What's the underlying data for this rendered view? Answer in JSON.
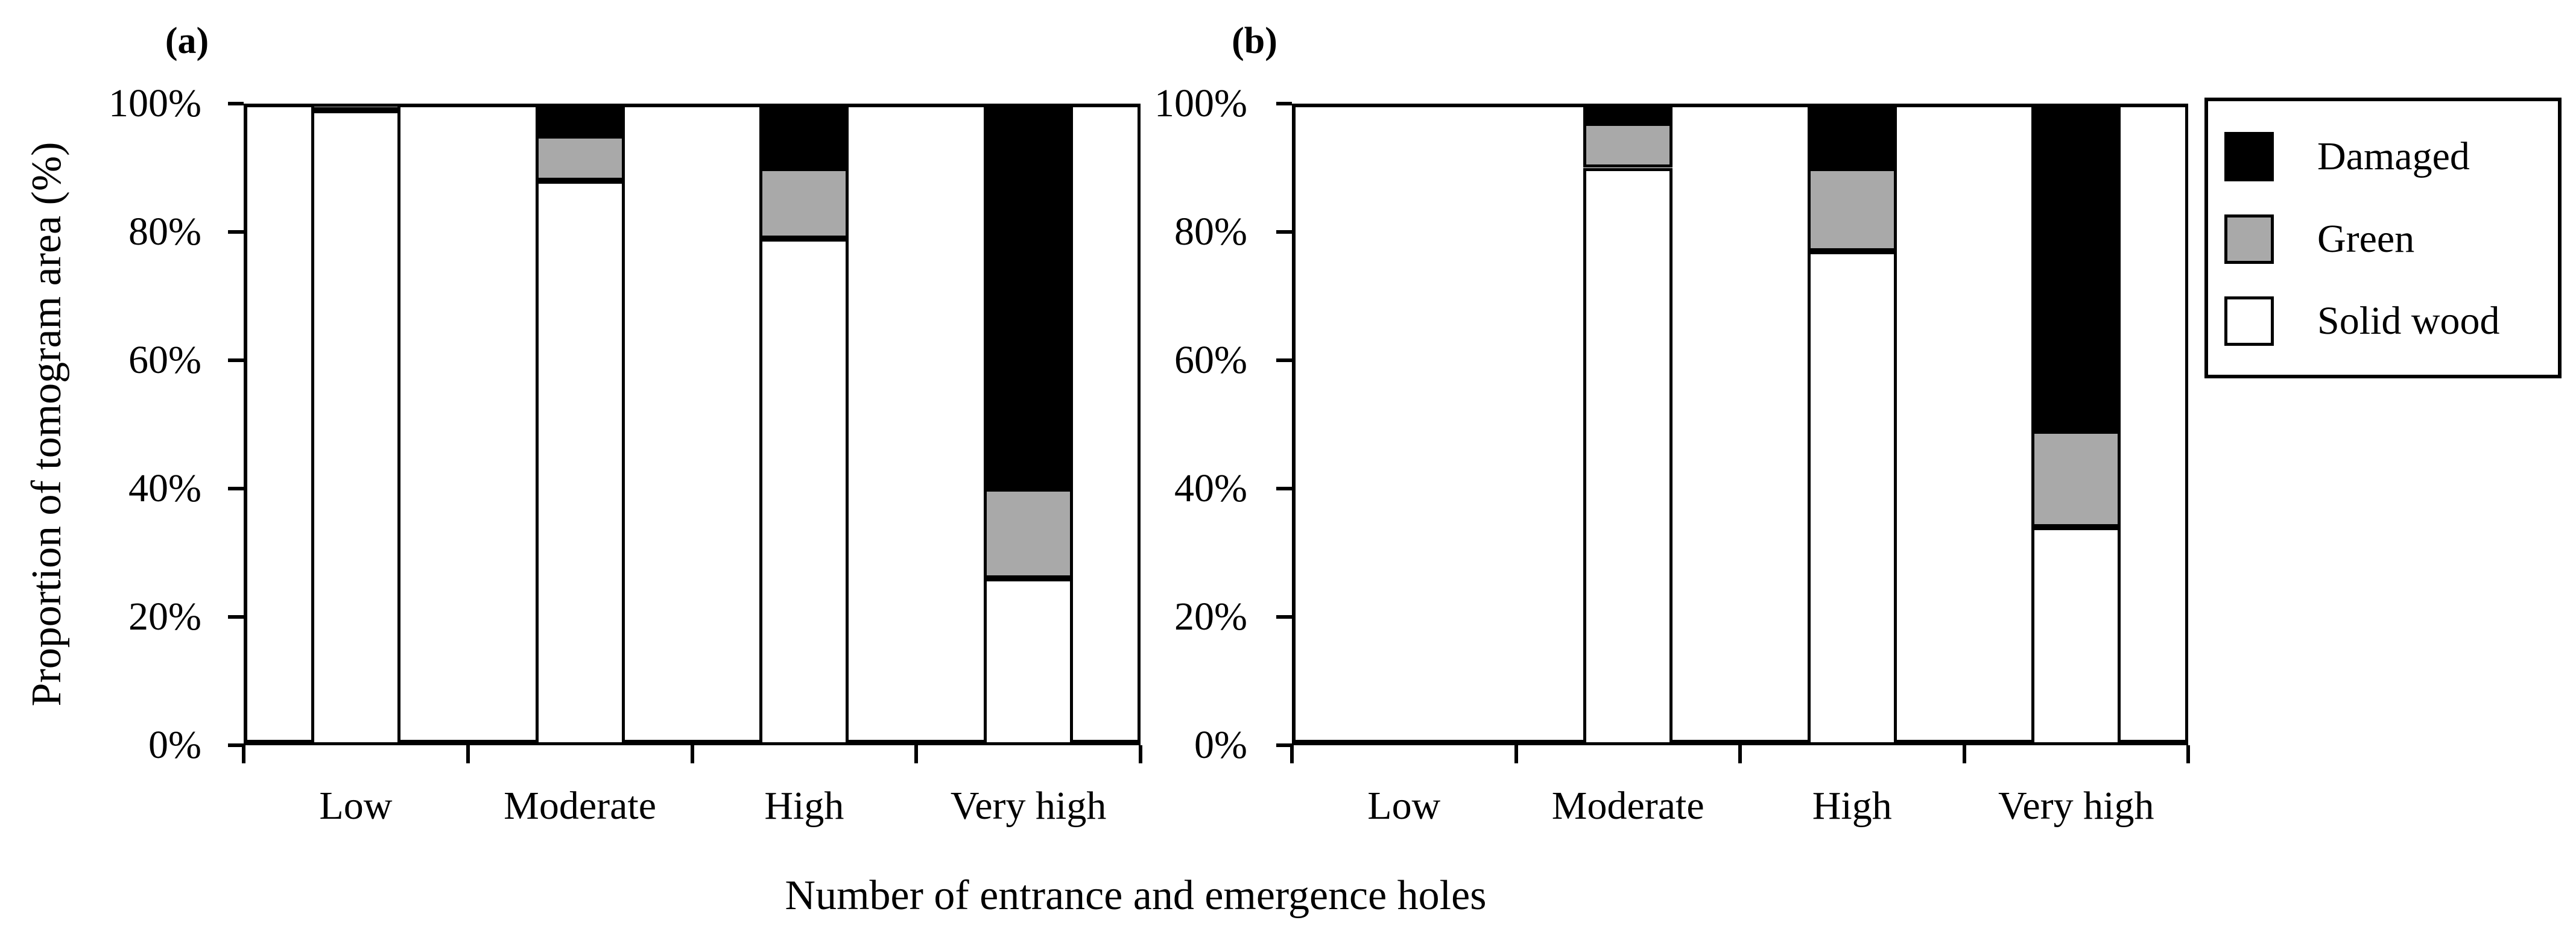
{
  "figure": {
    "y_axis_title": "Proportion of tomogram area (%)",
    "x_axis_title": "Number of entrance and emergence holes",
    "colors": {
      "damaged": "#000000",
      "green": "#a9a9a9",
      "solid_wood": "#ffffff",
      "line": "#000000",
      "background": "#ffffff"
    }
  },
  "legend": {
    "items": [
      {
        "label": "Damaged",
        "color_key": "damaged"
      },
      {
        "label": "Green",
        "color_key": "green"
      },
      {
        "label": "Solid wood",
        "color_key": "solid_wood"
      }
    ]
  },
  "chart_data": [
    {
      "type": "bar",
      "stacked": true,
      "panel_label": "(a)",
      "categories": [
        "Low",
        "Moderate",
        "High",
        "Very high"
      ],
      "series": [
        {
          "name": "Solid wood",
          "color_key": "solid_wood",
          "values": [
            99,
            88,
            79,
            26
          ]
        },
        {
          "name": "Green",
          "color_key": "green",
          "values": [
            1,
            7,
            11,
            14
          ]
        },
        {
          "name": "Damaged",
          "color_key": "damaged",
          "values": [
            0,
            5,
            10,
            60
          ]
        }
      ],
      "yticks": [
        "0%",
        "20%",
        "40%",
        "60%",
        "80%",
        "100%"
      ],
      "ylim": [
        0,
        100
      ],
      "ylabel": "Proportion of tomogram area (%)",
      "xlabel": "Number of entrance and emergence holes",
      "grid": false,
      "legend_position": "right-outside"
    },
    {
      "type": "bar",
      "stacked": true,
      "panel_label": "(b)",
      "categories": [
        "Low",
        "Moderate",
        "High",
        "Very high"
      ],
      "series": [
        {
          "name": "Solid wood",
          "color_key": "solid_wood",
          "values": [
            0,
            90,
            77,
            34
          ]
        },
        {
          "name": "Green",
          "color_key": "green",
          "values": [
            0,
            7,
            13,
            15
          ]
        },
        {
          "name": "Damaged",
          "color_key": "damaged",
          "values": [
            0,
            3,
            10,
            51
          ]
        }
      ],
      "yticks": [
        "0%",
        "20%",
        "40%",
        "60%",
        "80%",
        "100%"
      ],
      "ylim": [
        0,
        100
      ],
      "ylabel": "Proportion of tomogram area (%)",
      "xlabel": "Number of entrance and emergence holes",
      "grid": false,
      "legend_position": "right-outside"
    }
  ]
}
